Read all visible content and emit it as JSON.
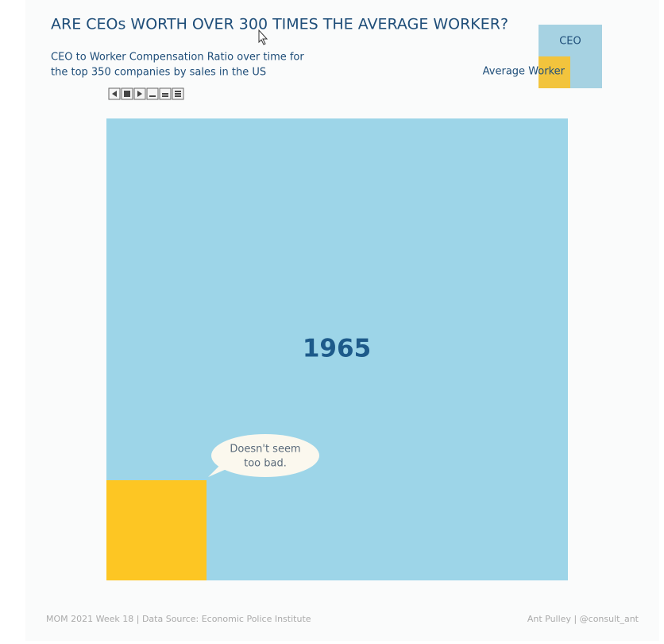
{
  "header": {
    "title": "ARE CEOs WORTH OVER 300 TIMES THE AVERAGE WORKER?",
    "subtitle": [
      "CEO to Worker Compensation Ratio over time for",
      "the top 350 companies by sales in the US"
    ]
  },
  "legend": {
    "items": [
      "CEO",
      "Average Worker"
    ]
  },
  "chart": {
    "year": "1965",
    "annotation": [
      "Doesn't seem",
      "too bad."
    ]
  },
  "footer": {
    "source": "MOM 2021 Week 18 | Data Source: Economic Police Institute",
    "author": "Ant Pulley | @consult_ant"
  }
}
